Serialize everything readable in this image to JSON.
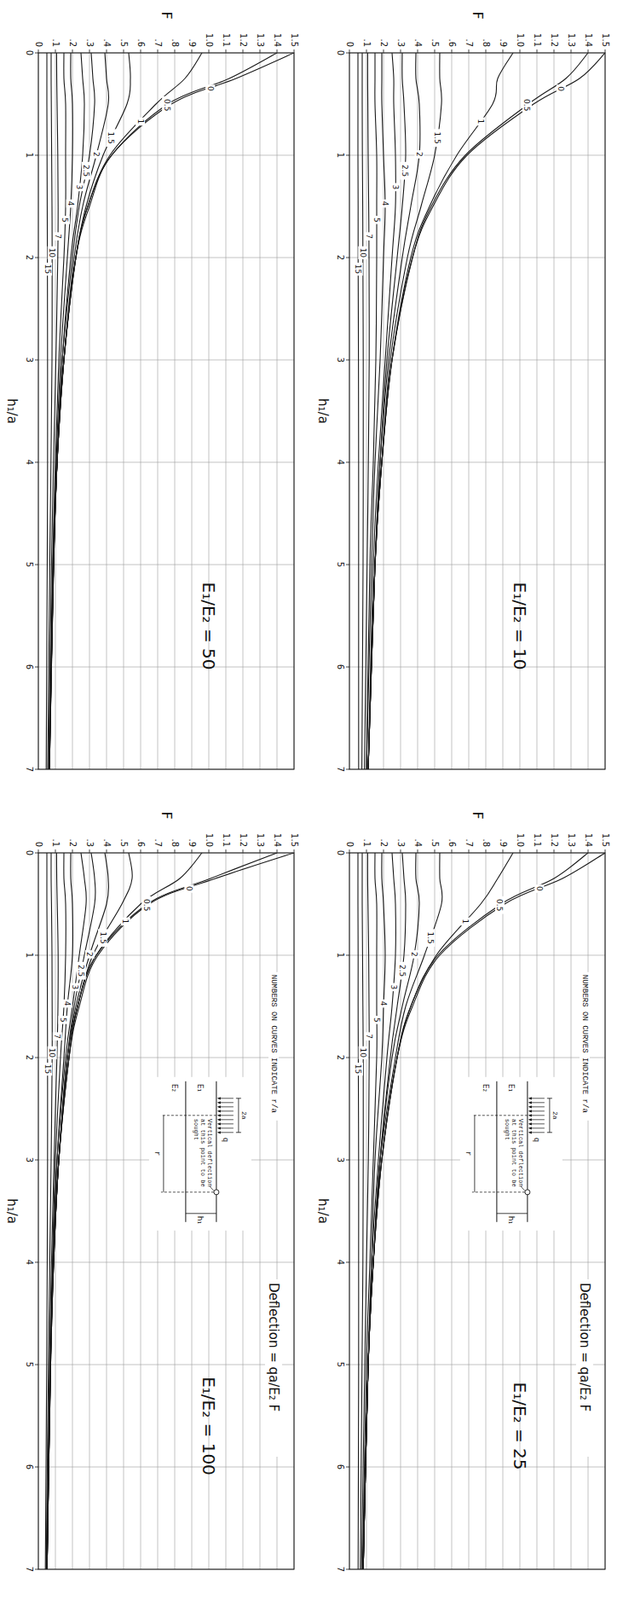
{
  "chart_data": [
    {
      "type": "line",
      "title": "E₁/E₂ = 50",
      "xlabel": "h₁/a",
      "ylabel": "F",
      "orientation": "horizontal",
      "grid": true,
      "color": "#1a1a1a",
      "x": [
        0,
        0.25,
        0.5,
        1,
        1.5,
        2,
        3,
        4,
        5,
        7
      ],
      "xlim": [
        0,
        7
      ],
      "xticks": [
        0,
        1,
        2,
        3,
        4,
        5,
        6,
        7
      ],
      "ylim": [
        0,
        1.5
      ],
      "yticks": [
        0,
        {
          "value": 0.1,
          "label": ".1"
        },
        {
          "value": 0.2,
          "label": ".2"
        },
        {
          "value": 0.3,
          "label": ".3"
        },
        {
          "value": 0.4,
          "label": ".4"
        },
        {
          "value": 0.5,
          "label": ".5"
        },
        {
          "value": 0.6,
          "label": ".6"
        },
        {
          "value": 0.7,
          "label": ".7"
        },
        {
          "value": 0.8,
          "label": ".8"
        },
        {
          "value": 0.9,
          "label": ".9"
        },
        {
          "value": 1,
          "label": "1.0"
        },
        1.1,
        1.2,
        1.3,
        1.4,
        1.5
      ],
      "series": [
        {
          "name": "0",
          "values": [
            1.5,
            1.16,
            0.78,
            0.43,
            0.3,
            0.22,
            0.15,
            0.11,
            0.09,
            0.065
          ]
        },
        {
          "name": "0.5",
          "values": [
            1.4,
            1.12,
            0.76,
            0.43,
            0.29,
            0.22,
            0.15,
            0.11,
            0.089,
            0.065
          ]
        },
        {
          "name": "1",
          "values": [
            0.96,
            0.86,
            0.69,
            0.42,
            0.29,
            0.22,
            0.15,
            0.11,
            0.089,
            0.065
          ]
        },
        {
          "name": "1.5",
          "values": [
            0.53,
            0.54,
            0.52,
            0.38,
            0.28,
            0.22,
            0.15,
            0.11,
            0.09,
            0.065
          ]
        },
        {
          "name": "2",
          "values": [
            0.39,
            0.4,
            0.41,
            0.34,
            0.26,
            0.21,
            0.15,
            0.11,
            0.089,
            0.064
          ]
        },
        {
          "name": "2.5",
          "values": [
            0.31,
            0.32,
            0.33,
            0.3,
            0.24,
            0.2,
            0.14,
            0.11,
            0.089,
            0.064
          ]
        },
        {
          "name": "3",
          "values": [
            0.25,
            0.26,
            0.27,
            0.26,
            0.23,
            0.19,
            0.14,
            0.11,
            0.088,
            0.064
          ]
        },
        {
          "name": "4",
          "values": [
            0.19,
            0.19,
            0.2,
            0.2,
            0.19,
            0.17,
            0.13,
            0.105,
            0.086,
            0.063
          ]
        },
        {
          "name": "5",
          "values": [
            0.15,
            0.15,
            0.16,
            0.16,
            0.16,
            0.15,
            0.12,
            0.1,
            0.084,
            0.062
          ]
        },
        {
          "name": "7",
          "values": [
            0.107,
            0.108,
            0.11,
            0.114,
            0.116,
            0.114,
            0.103,
            0.089,
            0.077,
            0.06
          ]
        },
        {
          "name": "10",
          "values": [
            0.075,
            0.075,
            0.076,
            0.078,
            0.08,
            0.081,
            0.08,
            0.074,
            0.067,
            0.055
          ]
        },
        {
          "name": "15",
          "values": [
            0.05,
            0.05,
            0.05,
            0.051,
            0.052,
            0.053,
            0.054,
            0.054,
            0.052,
            0.046
          ]
        }
      ]
    },
    {
      "type": "line",
      "title": "E₁/E₂ = 100",
      "xlabel": "h₁/a",
      "ylabel": "F",
      "orientation": "horizontal",
      "grid": true,
      "color": "#1a1a1a",
      "x": [
        0,
        0.25,
        0.5,
        1,
        1.5,
        2,
        3,
        4,
        5,
        7
      ],
      "xlim": [
        0,
        7
      ],
      "xticks": [
        0,
        1,
        2,
        3,
        4,
        5,
        6,
        7
      ],
      "ylim": [
        0,
        1.5
      ],
      "yticks": [
        0,
        {
          "value": 0.1,
          "label": ".1"
        },
        {
          "value": 0.2,
          "label": ".2"
        },
        {
          "value": 0.3,
          "label": ".3"
        },
        {
          "value": 0.4,
          "label": ".4"
        },
        {
          "value": 0.5,
          "label": ".5"
        },
        {
          "value": 0.6,
          "label": ".6"
        },
        {
          "value": 0.7,
          "label": ".7"
        },
        {
          "value": 0.8,
          "label": ".8"
        },
        {
          "value": 0.9,
          "label": ".9"
        },
        {
          "value": 1,
          "label": "1.0"
        },
        1.1,
        1.2,
        1.3,
        1.4,
        1.5
      ],
      "series": [
        {
          "name": "0",
          "values": [
            1.5,
            1.04,
            0.65,
            0.35,
            0.24,
            0.18,
            0.12,
            0.09,
            0.072,
            0.051
          ]
        },
        {
          "name": "0.5",
          "values": [
            1.4,
            1.01,
            0.64,
            0.34,
            0.23,
            0.18,
            0.12,
            0.09,
            0.072,
            0.051
          ]
        },
        {
          "name": "1",
          "values": [
            0.96,
            0.83,
            0.6,
            0.34,
            0.23,
            0.18,
            0.12,
            0.09,
            0.072,
            0.051
          ]
        },
        {
          "name": "1.5",
          "values": [
            0.53,
            0.55,
            0.49,
            0.32,
            0.23,
            0.17,
            0.12,
            0.089,
            0.071,
            0.051
          ]
        },
        {
          "name": "2",
          "values": [
            0.39,
            0.41,
            0.4,
            0.3,
            0.22,
            0.17,
            0.12,
            0.088,
            0.071,
            0.051
          ]
        },
        {
          "name": "2.5",
          "values": [
            0.31,
            0.33,
            0.33,
            0.27,
            0.21,
            0.17,
            0.12,
            0.089,
            0.071,
            0.051
          ]
        },
        {
          "name": "3",
          "values": [
            0.25,
            0.27,
            0.28,
            0.24,
            0.2,
            0.16,
            0.11,
            0.087,
            0.071,
            0.051
          ]
        },
        {
          "name": "4",
          "values": [
            0.19,
            0.19,
            0.2,
            0.2,
            0.17,
            0.15,
            0.11,
            0.085,
            0.07,
            0.05
          ]
        },
        {
          "name": "5",
          "values": [
            0.15,
            0.15,
            0.16,
            0.16,
            0.15,
            0.13,
            0.1,
            0.083,
            0.069,
            0.05
          ]
        },
        {
          "name": "7",
          "values": [
            0.107,
            0.108,
            0.111,
            0.116,
            0.115,
            0.109,
            0.092,
            0.077,
            0.065,
            0.049
          ]
        },
        {
          "name": "10",
          "values": [
            0.075,
            0.075,
            0.077,
            0.08,
            0.081,
            0.081,
            0.075,
            0.067,
            0.059,
            0.046
          ]
        },
        {
          "name": "15",
          "values": [
            0.05,
            0.05,
            0.05,
            0.052,
            0.053,
            0.054,
            0.054,
            0.052,
            0.049,
            0.041
          ]
        }
      ],
      "annotations": [
        "NUMBERS ON CURVES INDICATE r/a",
        "Deflection = qa/E₂ F"
      ],
      "diagram": {
        "load_width": "2a",
        "load": "q",
        "note": "Vertical deflection at this point to be sought",
        "upper": "E₁",
        "lower": "E₂",
        "thickness": "h₁",
        "offset": "r"
      }
    },
    {
      "type": "line",
      "title": "E₁/E₂ = 10",
      "xlabel": "h₁/a",
      "ylabel": "F",
      "orientation": "horizontal",
      "grid": true,
      "color": "#1a1a1a",
      "x": [
        0,
        0.25,
        0.5,
        1,
        1.5,
        2,
        3,
        4,
        5,
        7
      ],
      "xlim": [
        0,
        7
      ],
      "xticks": [
        0,
        1,
        2,
        3,
        4,
        5,
        6,
        7
      ],
      "ylim": [
        0,
        1.5
      ],
      "yticks": [
        0,
        {
          "value": 0.1,
          "label": ".1"
        },
        {
          "value": 0.2,
          "label": ".2"
        },
        {
          "value": 0.3,
          "label": ".3"
        },
        {
          "value": 0.4,
          "label": ".4"
        },
        {
          "value": 0.5,
          "label": ".5"
        },
        {
          "value": 0.6,
          "label": ".6"
        },
        {
          "value": 0.7,
          "label": ".7"
        },
        {
          "value": 0.8,
          "label": ".8"
        },
        {
          "value": 0.9,
          "label": ".9"
        },
        {
          "value": 1,
          "label": "1.0"
        },
        1.1,
        1.2,
        1.3,
        1.4,
        1.5
      ],
      "series": [
        {
          "name": "0",
          "values": [
            1.5,
            1.35,
            1.08,
            0.69,
            0.49,
            0.37,
            0.25,
            0.19,
            0.15,
            0.11
          ]
        },
        {
          "name": "0.5",
          "values": [
            1.4,
            1.27,
            1.05,
            0.68,
            0.48,
            0.37,
            0.25,
            0.19,
            0.15,
            0.11
          ]
        },
        {
          "name": "1",
          "values": [
            0.96,
            0.87,
            0.84,
            0.63,
            0.47,
            0.36,
            0.25,
            0.19,
            0.15,
            0.11
          ]
        },
        {
          "name": "1.5",
          "values": [
            0.53,
            0.53,
            0.54,
            0.5,
            0.42,
            0.34,
            0.24,
            0.19,
            0.15,
            0.11
          ]
        },
        {
          "name": "2",
          "values": [
            0.39,
            0.39,
            0.41,
            0.41,
            0.36,
            0.31,
            0.23,
            0.18,
            0.15,
            0.11
          ]
        },
        {
          "name": "2.5",
          "values": [
            0.31,
            0.31,
            0.32,
            0.33,
            0.31,
            0.28,
            0.22,
            0.18,
            0.15,
            0.11
          ]
        },
        {
          "name": "3",
          "values": [
            0.25,
            0.26,
            0.26,
            0.27,
            0.27,
            0.25,
            0.21,
            0.17,
            0.14,
            0.11
          ]
        },
        {
          "name": "4",
          "values": [
            0.19,
            0.19,
            0.19,
            0.2,
            0.21,
            0.2,
            0.18,
            0.15,
            0.13,
            0.1
          ]
        },
        {
          "name": "5",
          "values": [
            0.15,
            0.15,
            0.15,
            0.16,
            0.16,
            0.16,
            0.155,
            0.14,
            0.12,
            0.1
          ]
        },
        {
          "name": "7",
          "values": [
            0.107,
            0.107,
            0.108,
            0.11,
            0.113,
            0.115,
            0.116,
            0.111,
            0.104,
            0.088
          ]
        },
        {
          "name": "10",
          "values": [
            0.075,
            0.075,
            0.075,
            0.076,
            0.078,
            0.079,
            0.081,
            0.081,
            0.08,
            0.073
          ]
        },
        {
          "name": "15",
          "values": [
            0.05,
            0.05,
            0.05,
            0.05,
            0.051,
            0.051,
            0.053,
            0.054,
            0.054,
            0.054
          ]
        }
      ]
    },
    {
      "type": "line",
      "title": "E₁/E₂ = 25",
      "xlabel": "h₁/a",
      "ylabel": "F",
      "orientation": "horizontal",
      "grid": true,
      "color": "#1a1a1a",
      "x": [
        0,
        0.25,
        0.5,
        1,
        1.5,
        2,
        3,
        4,
        5,
        7
      ],
      "xlim": [
        0,
        7
      ],
      "xticks": [
        0,
        1,
        2,
        3,
        4,
        5,
        6,
        7
      ],
      "ylim": [
        0,
        1.5
      ],
      "yticks": [
        0,
        {
          "value": 0.1,
          "label": ".1"
        },
        {
          "value": 0.2,
          "label": ".2"
        },
        {
          "value": 0.3,
          "label": ".3"
        },
        {
          "value": 0.4,
          "label": ".4"
        },
        {
          "value": 0.5,
          "label": ".5"
        },
        {
          "value": 0.6,
          "label": ".6"
        },
        {
          "value": 0.7,
          "label": ".7"
        },
        {
          "value": 0.8,
          "label": ".8"
        },
        {
          "value": 0.9,
          "label": ".9"
        },
        {
          "value": 1,
          "label": "1.0"
        },
        1.1,
        1.2,
        1.3,
        1.4,
        1.5
      ],
      "series": [
        {
          "name": "0",
          "values": [
            1.5,
            1.25,
            0.91,
            0.53,
            0.37,
            0.28,
            0.19,
            0.14,
            0.11,
            0.081
          ]
        },
        {
          "name": "0.5",
          "values": [
            1.4,
            1.2,
            0.89,
            0.52,
            0.36,
            0.28,
            0.19,
            0.14,
            0.11,
            0.081
          ]
        },
        {
          "name": "1",
          "values": [
            0.96,
            0.87,
            0.77,
            0.51,
            0.36,
            0.28,
            0.19,
            0.14,
            0.11,
            0.081
          ]
        },
        {
          "name": "1.5",
          "values": [
            0.53,
            0.53,
            0.54,
            0.44,
            0.33,
            0.27,
            0.18,
            0.14,
            0.11,
            0.081
          ]
        },
        {
          "name": "2",
          "values": [
            0.39,
            0.39,
            0.41,
            0.38,
            0.31,
            0.25,
            0.18,
            0.14,
            0.11,
            0.081
          ]
        },
        {
          "name": "2.5",
          "values": [
            0.31,
            0.32,
            0.33,
            0.32,
            0.28,
            0.24,
            0.18,
            0.14,
            0.11,
            0.081
          ]
        },
        {
          "name": "3",
          "values": [
            0.25,
            0.26,
            0.27,
            0.27,
            0.25,
            0.22,
            0.17,
            0.13,
            0.11,
            0.08
          ]
        },
        {
          "name": "4",
          "values": [
            0.19,
            0.19,
            0.2,
            0.21,
            0.2,
            0.19,
            0.15,
            0.13,
            0.11,
            0.079
          ]
        },
        {
          "name": "5",
          "values": [
            0.15,
            0.15,
            0.16,
            0.16,
            0.16,
            0.16,
            0.14,
            0.12,
            0.1,
            0.077
          ]
        },
        {
          "name": "7",
          "values": [
            0.107,
            0.107,
            0.109,
            0.113,
            0.115,
            0.116,
            0.111,
            0.1,
            0.09,
            0.071
          ]
        },
        {
          "name": "10",
          "values": [
            0.075,
            0.075,
            0.075,
            0.077,
            0.079,
            0.081,
            0.081,
            0.079,
            0.074,
            0.064
          ]
        },
        {
          "name": "15",
          "values": [
            0.05,
            0.05,
            0.05,
            0.051,
            0.051,
            0.052,
            0.054,
            0.054,
            0.054,
            0.051
          ]
        }
      ],
      "annotations": [
        "NUMBERS ON CURVES INDICATE r/a",
        "Deflection = qa/E₂ F"
      ],
      "diagram": {
        "load_width": "2a",
        "load": "q",
        "note": "Vertical deflection at this point to be sought",
        "upper": "E₁",
        "lower": "E₂",
        "thickness": "h₁",
        "offset": "r"
      }
    }
  ]
}
